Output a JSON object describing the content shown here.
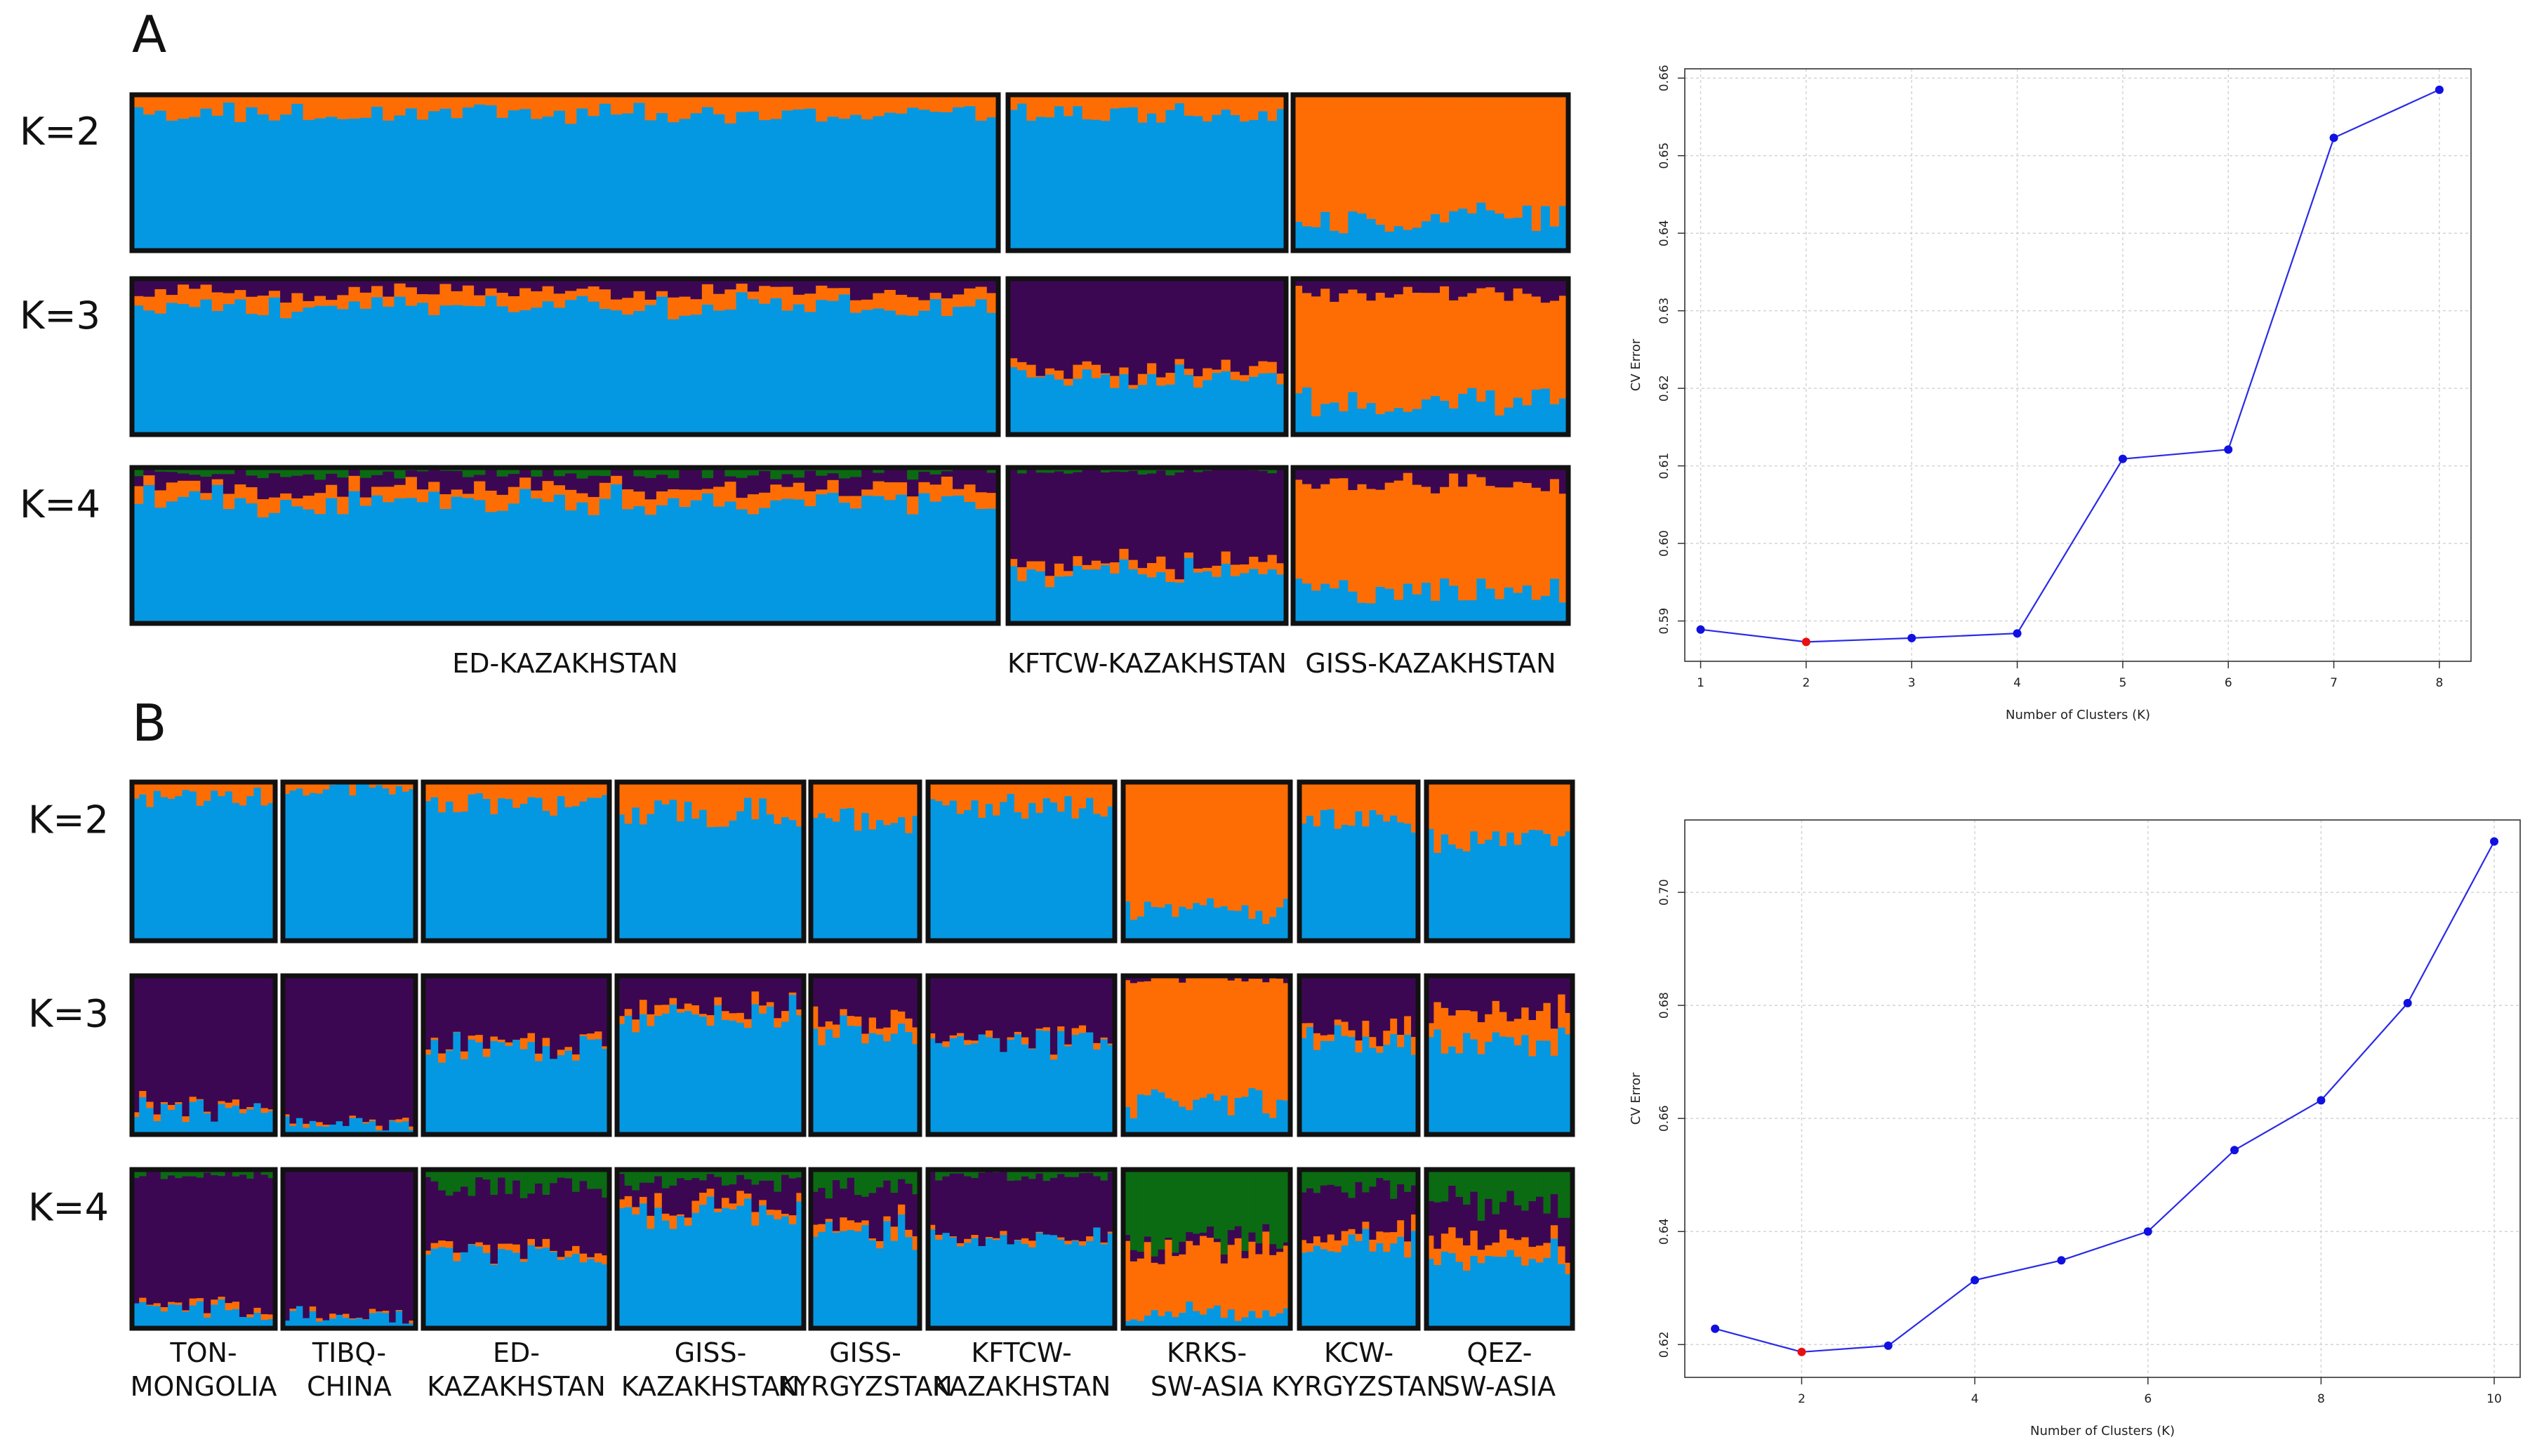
{
  "figure": {
    "panel_a_label": "A",
    "panel_b_label": "B"
  },
  "colors": {
    "blue": "#0598e2",
    "orange": "#fe6d04",
    "purple": "#3c0752",
    "green": "#0b6b12",
    "frame": "#111111",
    "line": "#2a2ae8",
    "point": "#1010e0",
    "min_point": "#e81010",
    "grid": "#d4d4d4"
  },
  "chart_data": [
    {
      "type": "stacked-bar",
      "id": "admixture-A",
      "k_labels": [
        "K=2",
        "K=3",
        "K=4"
      ],
      "components": [
        "blue",
        "orange",
        "purple",
        "green"
      ],
      "populations": [
        {
          "name": "ED-KAZAKHSTAN",
          "label_lines": [
            "ED-KAZAKHSTAN"
          ],
          "n": 76,
          "mean_fractions": {
            "K=2": {
              "blue": 0.88,
              "orange": 0.12
            },
            "K=3": {
              "blue": 0.82,
              "orange": 0.09,
              "purple": 0.09
            },
            "K=4": {
              "blue": 0.79,
              "orange": 0.08,
              "purple": 0.09,
              "green": 0.04
            }
          }
        },
        {
          "name": "KFTCW-KAZAKHSTAN",
          "label_lines": [
            "KFTCW-KAZAKHSTAN"
          ],
          "n": 30,
          "mean_fractions": {
            "K=2": {
              "blue": 0.88,
              "orange": 0.12
            },
            "K=3": {
              "blue": 0.35,
              "orange": 0.05,
              "purple": 0.6
            },
            "K=4": {
              "blue": 0.33,
              "orange": 0.05,
              "purple": 0.6,
              "green": 0.02
            }
          }
        },
        {
          "name": "GISS-KAZAKHSTAN",
          "label_lines": [
            "GISS-KAZAKHSTAN"
          ],
          "n": 30,
          "mean_fractions": {
            "K=2": {
              "blue": 0.22,
              "orange": 0.78
            },
            "K=3": {
              "blue": 0.22,
              "orange": 0.68,
              "purple": 0.1
            },
            "K=4": {
              "blue": 0.22,
              "orange": 0.68,
              "purple": 0.1,
              "green": 0.0
            }
          }
        }
      ]
    },
    {
      "type": "stacked-bar",
      "id": "admixture-B",
      "k_labels": [
        "K=2",
        "K=3",
        "K=4"
      ],
      "components": [
        "blue",
        "orange",
        "purple",
        "green"
      ],
      "populations": [
        {
          "name": "TON-MONGOLIA",
          "label_lines": [
            "TON-",
            "MONGOLIA"
          ],
          "n": 20,
          "mean_fractions": {
            "K=2": {
              "blue": 0.9,
              "orange": 0.1
            },
            "K=3": {
              "blue": 0.15,
              "orange": 0.02,
              "purple": 0.83
            },
            "K=4": {
              "blue": 0.12,
              "orange": 0.02,
              "purple": 0.83,
              "green": 0.03
            }
          }
        },
        {
          "name": "TIBQ-CHINA",
          "label_lines": [
            "TIBQ-",
            "CHINA"
          ],
          "n": 20,
          "mean_fractions": {
            "K=2": {
              "blue": 0.95,
              "orange": 0.05
            },
            "K=3": {
              "blue": 0.08,
              "orange": 0.01,
              "purple": 0.91
            },
            "K=4": {
              "blue": 0.08,
              "orange": 0.01,
              "purple": 0.91,
              "green": 0.0
            }
          }
        },
        {
          "name": "ED-KAZAKHSTAN",
          "label_lines": [
            "ED-",
            "KAZAKHSTAN"
          ],
          "n": 25,
          "mean_fractions": {
            "K=2": {
              "blue": 0.85,
              "orange": 0.15
            },
            "K=3": {
              "blue": 0.53,
              "orange": 0.03,
              "purple": 0.44
            },
            "K=4": {
              "blue": 0.47,
              "orange": 0.03,
              "purple": 0.39,
              "green": 0.11
            }
          }
        },
        {
          "name": "GISS-KAZAKHSTAN",
          "label_lines": [
            "GISS-",
            "KAZAKHSTAN"
          ],
          "n": 25,
          "mean_fractions": {
            "K=2": {
              "blue": 0.8,
              "orange": 0.2
            },
            "K=3": {
              "blue": 0.76,
              "orange": 0.05,
              "purple": 0.19
            },
            "K=4": {
              "blue": 0.72,
              "orange": 0.05,
              "purple": 0.15,
              "green": 0.08
            }
          }
        },
        {
          "name": "GISS-KYRGYZSTAN",
          "label_lines": [
            "GISS-",
            "KYRGYZSTAN"
          ],
          "n": 15,
          "mean_fractions": {
            "K=2": {
              "blue": 0.75,
              "orange": 0.25
            },
            "K=3": {
              "blue": 0.63,
              "orange": 0.1,
              "purple": 0.27
            },
            "K=4": {
              "blue": 0.59,
              "orange": 0.05,
              "purple": 0.24,
              "green": 0.12
            }
          }
        },
        {
          "name": "KFTCW-KAZAKHSTAN",
          "label_lines": [
            "KFTCW-",
            "KAZAKHSTAN"
          ],
          "n": 26,
          "mean_fractions": {
            "K=2": {
              "blue": 0.84,
              "orange": 0.16
            },
            "K=3": {
              "blue": 0.58,
              "orange": 0.02,
              "purple": 0.4
            },
            "K=4": {
              "blue": 0.56,
              "orange": 0.02,
              "purple": 0.38,
              "green": 0.04
            }
          }
        },
        {
          "name": "KRKS-SW-ASIA",
          "label_lines": [
            "KRKS-",
            "SW-ASIA"
          ],
          "n": 24,
          "mean_fractions": {
            "K=2": {
              "blue": 0.2,
              "orange": 0.8
            },
            "K=3": {
              "blue": 0.2,
              "orange": 0.78,
              "purple": 0.02
            },
            "K=4": {
              "blue": 0.1,
              "orange": 0.4,
              "purple": 0.05,
              "green": 0.45
            }
          }
        },
        {
          "name": "KCW-KYRGYZSTAN",
          "label_lines": [
            "KCW-",
            "KYRGYZSTAN"
          ],
          "n": 17,
          "mean_fractions": {
            "K=2": {
              "blue": 0.76,
              "orange": 0.24
            },
            "K=3": {
              "blue": 0.6,
              "orange": 0.07,
              "purple": 0.33
            },
            "K=4": {
              "blue": 0.54,
              "orange": 0.07,
              "purple": 0.28,
              "green": 0.11
            }
          }
        },
        {
          "name": "QEZ-SW-ASIA",
          "label_lines": [
            "QEZ-",
            "SW-ASIA"
          ],
          "n": 20,
          "mean_fractions": {
            "K=2": {
              "blue": 0.65,
              "orange": 0.35
            },
            "K=3": {
              "blue": 0.58,
              "orange": 0.2,
              "purple": 0.22
            },
            "K=4": {
              "blue": 0.42,
              "orange": 0.12,
              "purple": 0.24,
              "green": 0.22
            }
          }
        }
      ]
    },
    {
      "type": "line",
      "id": "cv-error-A",
      "xlabel": "Number of Clusters (K)",
      "ylabel": "CV Error",
      "x": [
        1,
        2,
        3,
        4,
        5,
        6,
        7,
        8
      ],
      "y": [
        0.5889,
        0.5873,
        0.5878,
        0.5884,
        0.6109,
        0.6121,
        0.6523,
        0.6585
      ],
      "highlight_index": 1,
      "xlim": [
        0.85,
        8.3
      ],
      "ylim": [
        0.5848,
        0.6612
      ],
      "xticks": [
        1,
        2,
        3,
        4,
        5,
        6,
        7,
        8
      ],
      "xtick_labels": [
        "1",
        "2",
        "3",
        "4",
        "5",
        "6",
        "7",
        "8"
      ],
      "yticks": [
        0.59,
        0.6,
        0.61,
        0.62,
        0.63,
        0.64,
        0.65,
        0.66
      ],
      "ytick_labels": [
        "0.59",
        "0.60",
        "0.61",
        "0.62",
        "0.63",
        "0.64",
        "0.65",
        "0.66"
      ],
      "grid": true
    },
    {
      "type": "line",
      "id": "cv-error-B",
      "xlabel": "Number of Clusters (K)",
      "ylabel": "CV Error",
      "x": [
        1,
        2,
        3,
        4,
        5,
        6,
        7,
        8,
        9,
        10
      ],
      "y": [
        0.6228,
        0.6187,
        0.6198,
        0.6314,
        0.6349,
        0.64,
        0.6544,
        0.6632,
        0.6804,
        0.709
      ],
      "highlight_index": 1,
      "xlim": [
        0.65,
        10.3
      ],
      "ylim": [
        0.6142,
        0.7128
      ],
      "xticks": [
        2,
        4,
        6,
        8,
        10
      ],
      "xtick_labels": [
        "2",
        "4",
        "6",
        "8",
        "10"
      ],
      "yticks": [
        0.62,
        0.64,
        0.66,
        0.68,
        0.7
      ],
      "ytick_labels": [
        "0.62",
        "0.64",
        "0.66",
        "0.68",
        "0.70"
      ],
      "grid": true
    }
  ]
}
